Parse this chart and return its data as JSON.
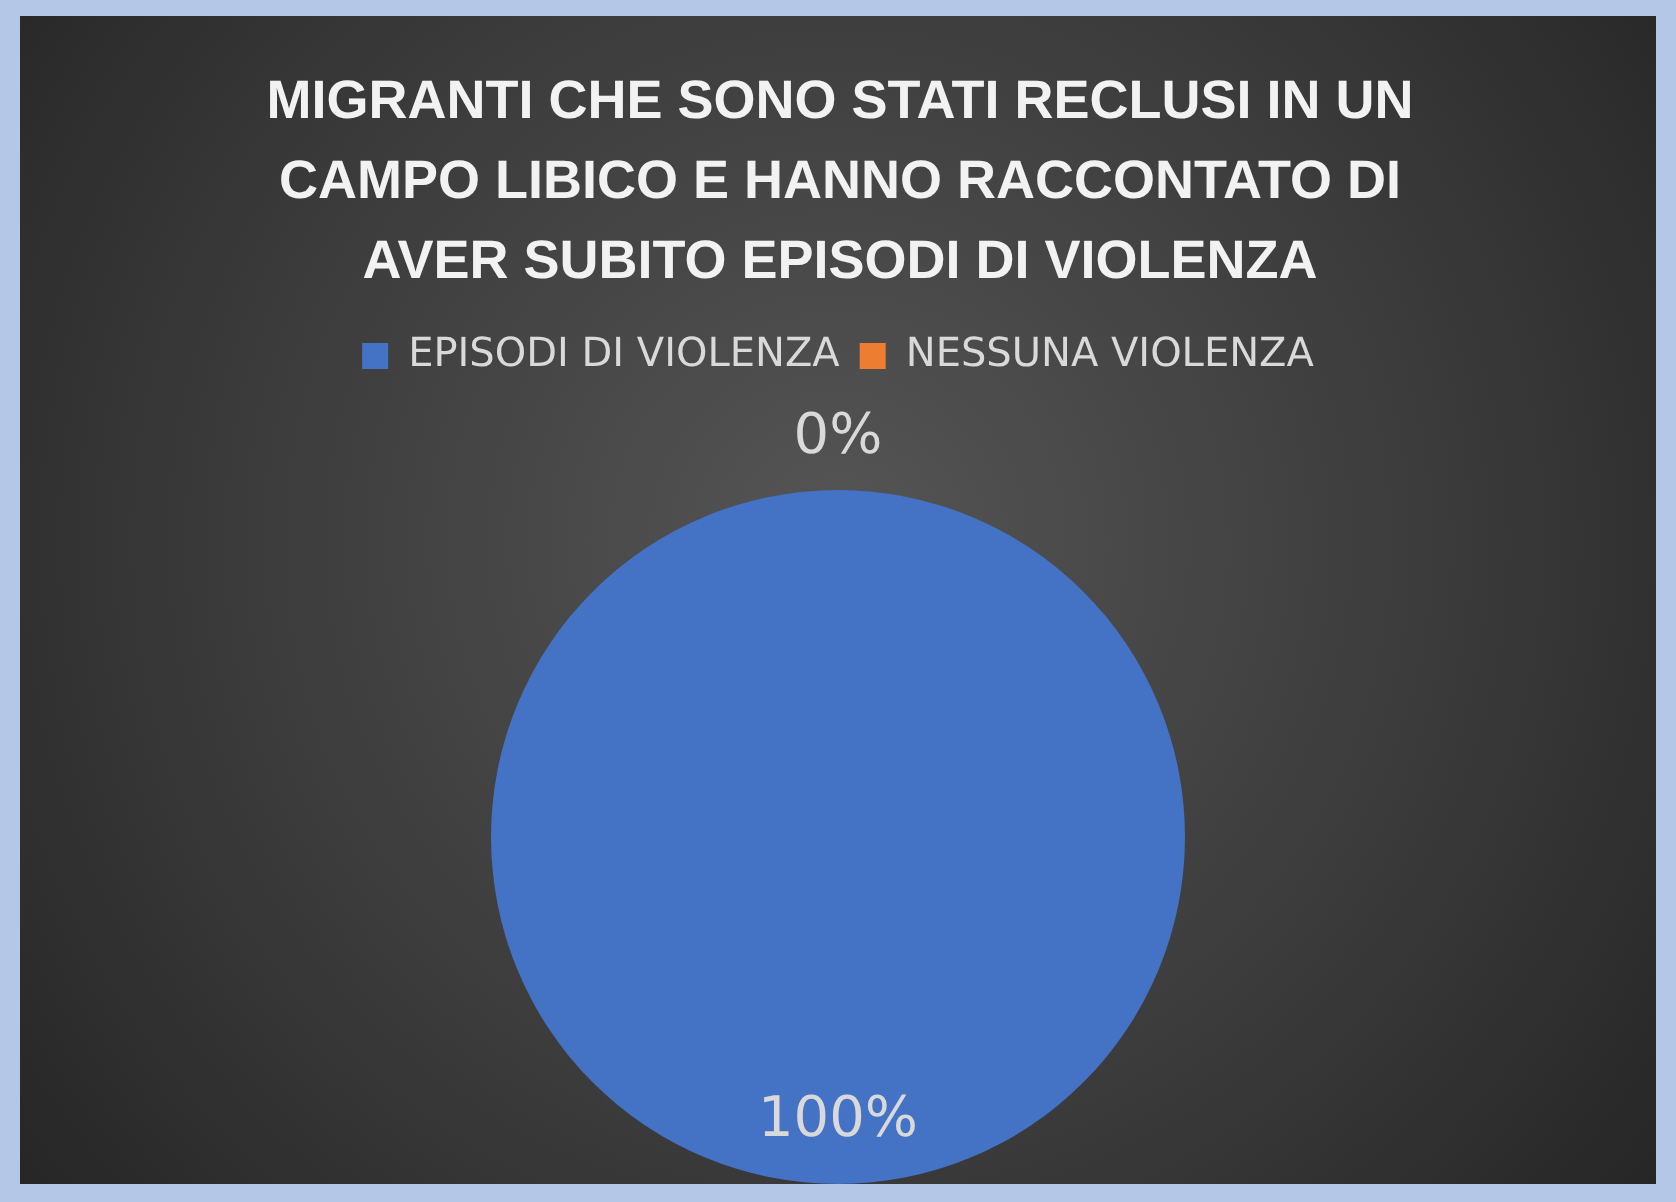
{
  "chart_data": {
    "type": "pie",
    "title": "MIGRANTI CHE SONO STATI RECLUSI IN UN CAMPO LIBICO E HANNO RACCONTATO DI AVER SUBITO EPISODI DI VIOLENZA",
    "categories": [
      "EPISODI DI VIOLENZA",
      "NESSUNA VIOLENZA"
    ],
    "values": [
      100,
      0
    ],
    "colors": [
      "#4472c4",
      "#ed7d31"
    ],
    "value_labels": [
      "100%",
      "0%"
    ],
    "legend": "top"
  }
}
